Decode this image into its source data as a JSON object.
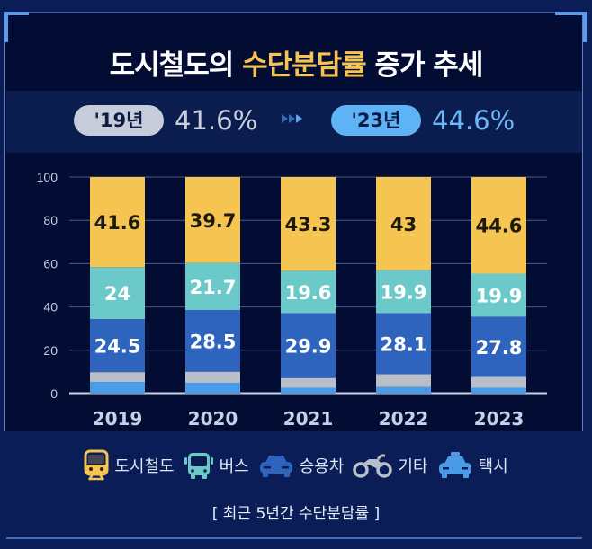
{
  "title": {
    "prefix": "도시철도의 ",
    "highlight": "수단분담률",
    "suffix": " 증가 추세"
  },
  "summary": {
    "from_label": "'19년",
    "from_value": "41.6%",
    "to_label": "'23년",
    "to_value": "44.6%",
    "arrow_icon": "triple-arrow-right-icon"
  },
  "colors": {
    "urban_rail": "#f5c451",
    "bus": "#6cc9c9",
    "car": "#2f64be",
    "other": "#b9bfc9",
    "taxi": "#4a9be8",
    "from_pill": "#c6ccd9",
    "to_pill": "#5db3f5",
    "to_value": "#6bb6f5"
  },
  "legend": [
    {
      "label": "도시철도",
      "icon": "train-icon"
    },
    {
      "label": "버스",
      "icon": "bus-icon"
    },
    {
      "label": "승용차",
      "icon": "car-icon"
    },
    {
      "label": "기타",
      "icon": "motorcycle-icon"
    },
    {
      "label": "택시",
      "icon": "taxi-icon"
    }
  ],
  "caption": "[ 최근 5년간 수단분담률 ]",
  "chart_data": {
    "type": "bar",
    "stacked": true,
    "title": "도시철도의 수단분담률 증가 추세",
    "xlabel": "",
    "ylabel": "",
    "ylim": [
      0,
      100
    ],
    "yticks": [
      0,
      20,
      40,
      60,
      80,
      100
    ],
    "grid": true,
    "legend_position": "bottom",
    "categories": [
      "2019",
      "2020",
      "2021",
      "2022",
      "2023"
    ],
    "series": [
      {
        "name": "택시",
        "key": "taxi",
        "values": [
          5.4,
          5.0,
          2.7,
          3.0,
          2.7
        ],
        "labeled": false
      },
      {
        "name": "기타",
        "key": "other",
        "values": [
          4.5,
          5.1,
          4.5,
          6.0,
          5.0
        ],
        "labeled": false
      },
      {
        "name": "승용차",
        "key": "car",
        "values": [
          24.5,
          28.5,
          29.9,
          28.1,
          27.8
        ],
        "labels": [
          "24.5",
          "28.5",
          "29.9",
          "28.1",
          "27.8"
        ],
        "labeled": true
      },
      {
        "name": "버스",
        "key": "bus",
        "values": [
          24,
          21.7,
          19.6,
          19.9,
          19.9
        ],
        "labels": [
          "24",
          "21.7",
          "19.6",
          "19.9",
          "19.9"
        ],
        "labeled": true
      },
      {
        "name": "도시철도",
        "key": "urban_rail",
        "values": [
          41.6,
          39.7,
          43.3,
          43,
          44.6
        ],
        "labels": [
          "41.6",
          "39.7",
          "43.3",
          "43",
          "44.6"
        ],
        "labeled": true
      }
    ]
  }
}
